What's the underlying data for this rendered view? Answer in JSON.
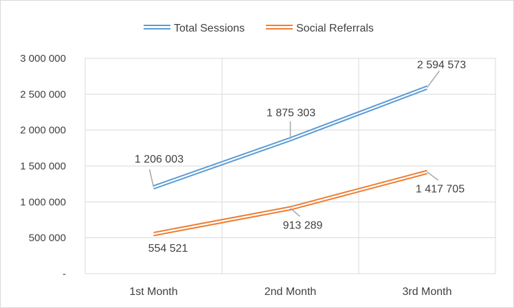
{
  "chart_data": {
    "type": "line",
    "title": "",
    "xlabel": "",
    "ylabel": "",
    "categories": [
      "1st Month",
      "2nd Month",
      "3rd Month"
    ],
    "series": [
      {
        "name": "Total Sessions",
        "values": [
          1206003,
          1875303,
          2594573
        ],
        "labels": [
          "1 206 003",
          "1 875 303",
          "2 594 573"
        ],
        "color": "#5B9BD5"
      },
      {
        "name": "Social Referrals",
        "values": [
          554521,
          913289,
          1417705
        ],
        "labels": [
          "554 521",
          "913 289",
          "1 417 705"
        ],
        "color": "#ED7D31"
      }
    ],
    "ylim": [
      0,
      3000000
    ],
    "yticks": [
      0,
      500000,
      1000000,
      1500000,
      2000000,
      2500000,
      3000000
    ],
    "ytick_labels": [
      "-",
      "500 000",
      "1 000 000",
      "1 500 000",
      "2 000 000",
      "2 500 000",
      "3 000 000"
    ],
    "grid": true,
    "legend_position": "top"
  }
}
